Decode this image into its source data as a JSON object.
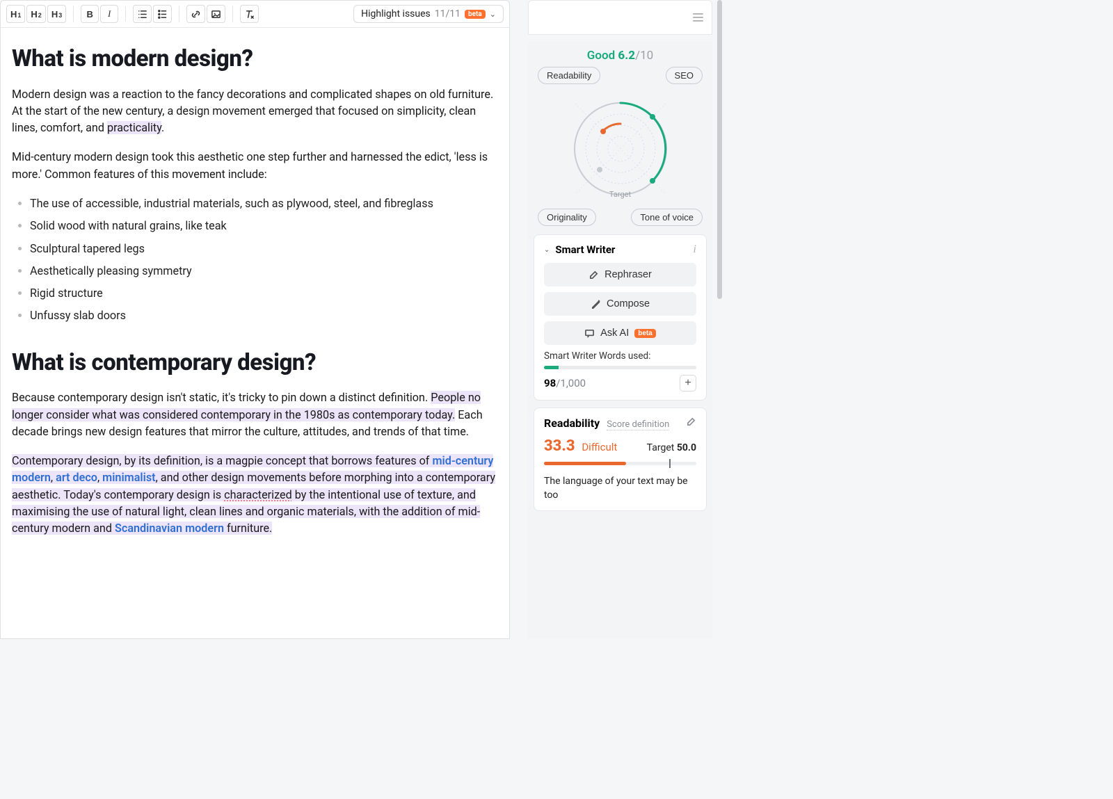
{
  "toolbar": {
    "h1": "H",
    "h1_sub": "1",
    "h2": "H",
    "h2_sub": "2",
    "h3": "H",
    "h3_sub": "3",
    "bold": "B",
    "italic": "I",
    "highlight_label": "Highlight issues",
    "highlight_count": "11/11",
    "beta": "beta"
  },
  "article": {
    "heading1": "What is modern design?",
    "p1_a": "Modern design was a reaction to the fancy decorations and complicated shapes on old furniture. At the start of the new century, a design movement emerged that focused on simplicity, clean lines, comfort, and ",
    "p1_hl": "practicality",
    "p1_b": ".",
    "p2": "Mid-century modern design took this aesthetic one step further and harnessed the edict, 'less is more.' Common features of this movement include:",
    "bullets": [
      "The use of accessible, industrial materials, such as plywood, steel, and fibreglass",
      "Solid wood with natural grains, like teak",
      "Sculptural tapered legs",
      "Aesthetically pleasing symmetry",
      "Rigid structure",
      "Unfussy slab doors"
    ],
    "heading2": "What is contemporary design?",
    "p3_a": "Because contemporary design isn't static, it's tricky to pin down a distinct definition. ",
    "p3_hl": "People no longer consider what was considered contemporary in the 1980s as contemporary today.",
    "p3_b": " Each decade brings new design features that mirror the culture, attitudes, and trends of that time.",
    "p4_a": "Contemporary design, by its definition, is a magpie concept that borrows features of ",
    "link1": "mid-century modern",
    "p4_b": ", ",
    "link2": "art deco",
    "p4_c": ", ",
    "link3": "minimalist",
    "p4_d": ", and other design movements before morphing into a contemporary aesthetic.",
    "p4_e": " Today's contemporary design is ",
    "p4_sq": "characterized",
    "p4_f": " by the intentional use of texture, and maximising the use of natural light, clean lines and organic materials, with the addition of mid-century modern and ",
    "link4": "Scandinavian modern",
    "p4_g": " furniture."
  },
  "side": {
    "score": {
      "label": "Good",
      "value": "6.2",
      "max": "/10"
    },
    "pills": {
      "readability": "Readability",
      "seo": "SEO",
      "originality": "Originality",
      "tone": "Tone of voice",
      "target": "Target"
    },
    "radar": {
      "ring_color": "#d7dbe0",
      "diag_color": "#e4e7eb",
      "arc1_color": "#1aab7d",
      "arc2_color": "#e9682e",
      "dot_color_green": "#1aab7d",
      "dot_color_grey": "#c6cad0"
    },
    "smart": {
      "title": "Smart Writer",
      "rephraser": "Rephraser",
      "compose": "Compose",
      "ask": "Ask AI",
      "beta": "beta",
      "words_label": "Smart Writer Words used:",
      "used": "98",
      "max": "/1,000",
      "bar_pct": 9.8,
      "bar_color": "#1aab7d"
    },
    "readability": {
      "title": "Readability",
      "definition": "Score definition",
      "score": "33.3",
      "difficulty": "Difficult",
      "target_label": "Target",
      "target_value": "50.0",
      "bar_pct": 54,
      "tick_pct": 82,
      "bar_color": "#e9682e",
      "msg": "The language of your text may be too"
    }
  }
}
